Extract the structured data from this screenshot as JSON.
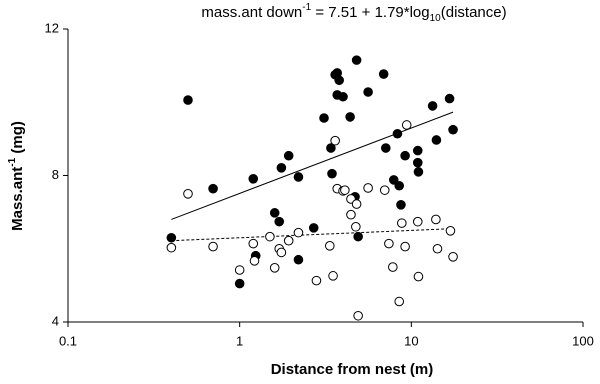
{
  "chart_data": {
    "type": "scatter",
    "title": [
      "mass.ant down",
      "-1",
      " = 7.51 + 1.79*log",
      "10",
      "(distance)"
    ],
    "x_label": "Distance from nest (m)",
    "y_label": [
      "Mass.ant",
      "-1",
      " (mg)"
    ],
    "x_log": true,
    "xlim": [
      0.1,
      100
    ],
    "xticks": [
      0.1,
      1,
      10,
      100
    ],
    "ylim": [
      4,
      12
    ],
    "yticks": [
      4,
      8,
      12
    ],
    "grid": false,
    "series": [
      {
        "marker": "filled",
        "color": "#000000",
        "x": [
          0.4,
          0.5,
          0.7,
          1.0,
          1.2,
          1.24,
          1.6,
          1.7,
          1.75,
          1.93,
          2.2,
          2.2,
          2.7,
          3.1,
          3.4,
          3.45,
          3.6,
          3.7,
          3.7,
          3.8,
          4.0,
          4.4,
          4.7,
          4.8,
          4.9,
          5.6,
          6.9,
          7.1,
          7.9,
          8.3,
          8.5,
          8.7,
          9.2,
          10.9,
          10.9,
          11.0,
          13.3,
          14.0,
          16.7,
          17.5
        ],
        "values": [
          6.3,
          10.06,
          7.64,
          5.05,
          7.91,
          5.81,
          6.98,
          6.74,
          8.21,
          8.54,
          5.7,
          7.96,
          6.57,
          9.57,
          8.75,
          8.05,
          10.75,
          10.2,
          10.8,
          10.6,
          10.15,
          9.6,
          7.42,
          11.15,
          6.33,
          10.28,
          10.77,
          8.75,
          7.88,
          9.14,
          7.72,
          7.2,
          8.54,
          8.68,
          8.35,
          8.1,
          9.9,
          8.97,
          10.1,
          9.25
        ]
      },
      {
        "marker": "open",
        "color": "#000000",
        "x": [
          0.4,
          0.5,
          0.7,
          1.0,
          1.2,
          1.22,
          1.5,
          1.6,
          1.7,
          1.75,
          1.93,
          2.2,
          2.8,
          3.35,
          3.5,
          3.6,
          3.7,
          4.0,
          4.1,
          4.45,
          4.45,
          4.75,
          4.8,
          4.9,
          5.6,
          7.0,
          7.4,
          7.8,
          8.5,
          8.8,
          9.2,
          9.4,
          10.9,
          11.0,
          13.9,
          14.2,
          16.9,
          17.5
        ],
        "values": [
          6.03,
          7.5,
          6.06,
          5.42,
          6.14,
          5.67,
          6.33,
          5.48,
          6.0,
          5.9,
          6.22,
          6.44,
          5.13,
          6.08,
          5.26,
          8.95,
          7.64,
          7.58,
          7.6,
          6.93,
          7.36,
          6.6,
          7.22,
          4.17,
          7.66,
          7.6,
          6.14,
          5.5,
          4.56,
          6.7,
          6.06,
          9.38,
          6.74,
          5.24,
          6.8,
          6.0,
          6.49,
          5.78
        ]
      }
    ],
    "lines": [
      {
        "style": "solid",
        "color": "#000000",
        "x": [
          0.4,
          17.5
        ],
        "y": [
          6.8,
          9.73
        ]
      },
      {
        "style": "dashed",
        "color": "#000000",
        "x": [
          0.4,
          17.5
        ],
        "y": [
          6.22,
          6.55
        ]
      }
    ]
  }
}
